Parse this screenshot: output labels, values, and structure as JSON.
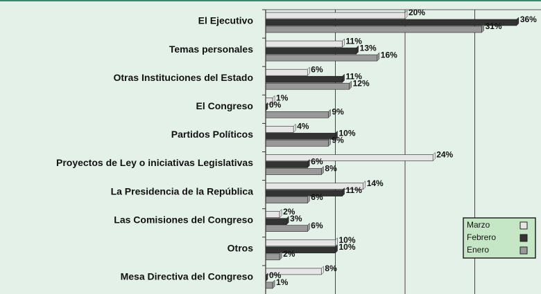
{
  "chart_data": {
    "type": "bar",
    "orientation": "horizontal",
    "categories": [
      "El Ejecutivo",
      "Temas personales",
      "Otras Instituciones del Estado",
      "El Congreso",
      "Partidos Políticos",
      "Proyectos de Ley o iniciativas Legislativas",
      "La Presidencia de la República",
      "Las Comisiones del Congreso",
      "Otros",
      "Mesa Directiva del Congreso"
    ],
    "series": [
      {
        "name": "Marzo",
        "color": "#e6e6e6",
        "values": [
          20,
          11,
          6,
          1,
          4,
          24,
          14,
          2,
          10,
          8
        ],
        "value_labels": [
          "20%",
          "11%",
          "6%",
          "1%",
          "4%",
          "24%",
          "14%",
          "2%",
          "10%",
          "8%"
        ]
      },
      {
        "name": "Febrero",
        "color": "#333333",
        "values": [
          36,
          13,
          11,
          0,
          10,
          6,
          11,
          3,
          10,
          0
        ],
        "value_labels": [
          "36%",
          "13%",
          "11%",
          "0%",
          "10%",
          "6%",
          "11%",
          "3%",
          "10%",
          "0%"
        ]
      },
      {
        "name": "Enero",
        "color": "#999999",
        "values": [
          31,
          16,
          12,
          9,
          9,
          8,
          6,
          6,
          2,
          1
        ],
        "value_labels": [
          "31%",
          "16%",
          "12%",
          "9%",
          "9%",
          "8%",
          "6%",
          "6%",
          "2%",
          "1%"
        ]
      }
    ],
    "xlim": [
      0,
      39.5
    ],
    "xticks": [
      0,
      10,
      20,
      30
    ],
    "grid": true,
    "legend": "lower right"
  }
}
